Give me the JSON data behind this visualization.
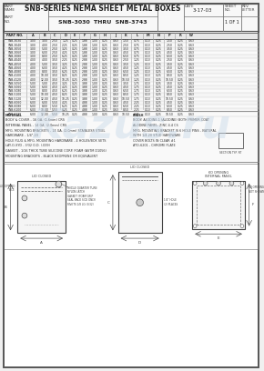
{
  "bg_color": "#f0f0f0",
  "sheet_bg": "#ffffff",
  "border_color": "#888888",
  "line_color": "#555555",
  "dim_color": "#666666",
  "text_color": "#333333",
  "watermark_color": "#c8d8e8",
  "title_block": {
    "part_label": "PART\nNAME",
    "title": "SNB-SERIES NEMA SHEET METAL BOXES",
    "part_no_label": "PART\nNO.",
    "part_range": "SNB-3030  THRU  SNB-3743",
    "date_label": "DATE",
    "date": "3-17-03",
    "sheet_label": "SHEET\nNO.",
    "sheet": "1 OF 1"
  },
  "drawing_notes": [
    "MATERIAL",
    "BODY & COVER - 16 GA. (1.6mm) CR5",
    "INTERNAL PANEL - 14 GA. (2.0mm) CR5",
    "MFG. MOUNTING BRACKETS - 14 GA. (2.0mm) STAINLESS STEEL",
    "HARDWARE - 1/4\"-20",
    "HOLE PLUG & MFG. MOUNTING HARDWARE - 4 HOLES/BOX SETS",
    "LAY-O-SYD - 3/32 O.D. (.039)",
    "GASKET - 1/16 THICK TUBE SILICONE CORP. FOAM (ASTM D1056)",
    "MOUNTING BRACKETS - BLACK NEOPRENE OR EQUIVALENT",
    "",
    "FINISH",
    "BODY: ALODINE-1 (ALODINE) BOTH PRIMER COAT",
    "ALODINE PANEL: ZINC 4.4 CS",
    "MFG. MOUNTING BRACKET IS 6 HOLE PINS - NATURAL WITH 1/4-20 STUD HARDWARE",
    "COVER BOLTS IN CLEAR #1",
    "ATO-6201 - CHROME PLATE"
  ],
  "watermark_text": "Kazus.ru",
  "table_header": [
    "PART NO.",
    "A",
    "B",
    "C",
    "D",
    "E",
    "F",
    "G",
    "H",
    "J",
    "K",
    "L",
    "M",
    "N",
    "P",
    "R",
    "W"
  ],
  "table_rows": [
    [
      "SNB-3030",
      "3.00",
      "3.00",
      "2.50",
      "1.25",
      "0.25",
      "1.88",
      "1.00",
      "0.25",
      "0.63",
      "1.50",
      "0.75",
      "0.13",
      "0.25",
      "1.50",
      "0.25",
      "0.63"
    ],
    [
      "SNB-3040",
      "3.00",
      "4.00",
      "2.50",
      "2.25",
      "0.25",
      "1.88",
      "1.00",
      "0.25",
      "0.63",
      "2.50",
      "0.75",
      "0.13",
      "0.25",
      "2.50",
      "0.25",
      "0.63"
    ],
    [
      "SNB-3050",
      "3.00",
      "5.00",
      "2.50",
      "3.25",
      "0.25",
      "1.88",
      "1.00",
      "0.25",
      "0.63",
      "3.50",
      "0.75",
      "0.13",
      "0.25",
      "3.50",
      "0.25",
      "0.63"
    ],
    [
      "SNB-3060",
      "3.00",
      "6.00",
      "2.50",
      "4.25",
      "0.25",
      "1.88",
      "1.00",
      "0.25",
      "0.63",
      "4.50",
      "0.75",
      "0.13",
      "0.25",
      "4.50",
      "0.25",
      "0.63"
    ],
    [
      "SNB-3080",
      "3.00",
      "8.00",
      "2.50",
      "6.25",
      "0.25",
      "1.88",
      "1.00",
      "0.25",
      "0.63",
      "6.50",
      "0.75",
      "0.13",
      "0.25",
      "6.50",
      "0.25",
      "0.63"
    ],
    [
      "SNB-4040",
      "4.00",
      "4.00",
      "3.50",
      "2.25",
      "0.25",
      "2.88",
      "1.00",
      "0.25",
      "0.63",
      "2.50",
      "1.25",
      "0.13",
      "0.25",
      "2.50",
      "0.25",
      "0.63"
    ],
    [
      "SNB-4050",
      "4.00",
      "5.00",
      "3.50",
      "3.25",
      "0.25",
      "2.88",
      "1.00",
      "0.25",
      "0.63",
      "3.50",
      "1.25",
      "0.13",
      "0.25",
      "3.50",
      "0.25",
      "0.63"
    ],
    [
      "SNB-4060",
      "4.00",
      "6.00",
      "3.50",
      "4.25",
      "0.25",
      "2.88",
      "1.00",
      "0.25",
      "0.63",
      "4.50",
      "1.25",
      "0.13",
      "0.25",
      "4.50",
      "0.25",
      "0.63"
    ],
    [
      "SNB-4080",
      "4.00",
      "8.00",
      "3.50",
      "6.25",
      "0.25",
      "2.88",
      "1.00",
      "0.25",
      "0.63",
      "6.50",
      "1.25",
      "0.13",
      "0.25",
      "6.50",
      "0.25",
      "0.63"
    ],
    [
      "SNB-4100",
      "4.00",
      "10.00",
      "3.50",
      "8.25",
      "0.25",
      "2.88",
      "1.00",
      "0.25",
      "0.63",
      "8.50",
      "1.25",
      "0.13",
      "0.25",
      "8.50",
      "0.25",
      "0.63"
    ],
    [
      "SNB-4120",
      "4.00",
      "12.00",
      "3.50",
      "10.25",
      "0.25",
      "2.88",
      "1.00",
      "0.25",
      "0.63",
      "10.50",
      "1.25",
      "0.13",
      "0.25",
      "10.50",
      "0.25",
      "0.63"
    ],
    [
      "SNB-5050",
      "5.00",
      "5.00",
      "4.50",
      "3.25",
      "0.25",
      "3.88",
      "1.00",
      "0.25",
      "0.63",
      "3.50",
      "1.75",
      "0.13",
      "0.25",
      "3.50",
      "0.25",
      "0.63"
    ],
    [
      "SNB-5060",
      "5.00",
      "6.00",
      "4.50",
      "4.25",
      "0.25",
      "3.88",
      "1.00",
      "0.25",
      "0.63",
      "4.50",
      "1.75",
      "0.13",
      "0.25",
      "4.50",
      "0.25",
      "0.63"
    ],
    [
      "SNB-5080",
      "5.00",
      "8.00",
      "4.50",
      "6.25",
      "0.25",
      "3.88",
      "1.00",
      "0.25",
      "0.63",
      "6.50",
      "1.75",
      "0.13",
      "0.25",
      "6.50",
      "0.25",
      "0.63"
    ],
    [
      "SNB-5100",
      "5.00",
      "10.00",
      "4.50",
      "8.25",
      "0.25",
      "3.88",
      "1.00",
      "0.25",
      "0.63",
      "8.50",
      "1.75",
      "0.13",
      "0.25",
      "8.50",
      "0.25",
      "0.63"
    ],
    [
      "SNB-5120",
      "5.00",
      "12.00",
      "4.50",
      "10.25",
      "0.25",
      "3.88",
      "1.00",
      "0.25",
      "0.63",
      "10.50",
      "1.75",
      "0.13",
      "0.25",
      "10.50",
      "0.25",
      "0.63"
    ],
    [
      "SNB-6060",
      "6.00",
      "6.00",
      "5.50",
      "4.25",
      "0.25",
      "4.88",
      "1.00",
      "0.25",
      "0.63",
      "4.50",
      "2.25",
      "0.13",
      "0.25",
      "4.50",
      "0.25",
      "0.63"
    ],
    [
      "SNB-6080",
      "6.00",
      "8.00",
      "5.50",
      "6.25",
      "0.25",
      "4.88",
      "1.00",
      "0.25",
      "0.63",
      "6.50",
      "2.25",
      "0.13",
      "0.25",
      "6.50",
      "0.25",
      "0.63"
    ],
    [
      "SNB-6100",
      "6.00",
      "10.00",
      "5.50",
      "8.25",
      "0.25",
      "4.88",
      "1.00",
      "0.25",
      "0.63",
      "8.50",
      "2.25",
      "0.13",
      "0.25",
      "8.50",
      "0.25",
      "0.63"
    ],
    [
      "SNB-6120",
      "6.00",
      "12.00",
      "5.50",
      "10.25",
      "0.25",
      "4.88",
      "1.00",
      "0.25",
      "0.63",
      "10.50",
      "2.25",
      "0.13",
      "0.25",
      "10.50",
      "0.25",
      "0.63"
    ]
  ]
}
